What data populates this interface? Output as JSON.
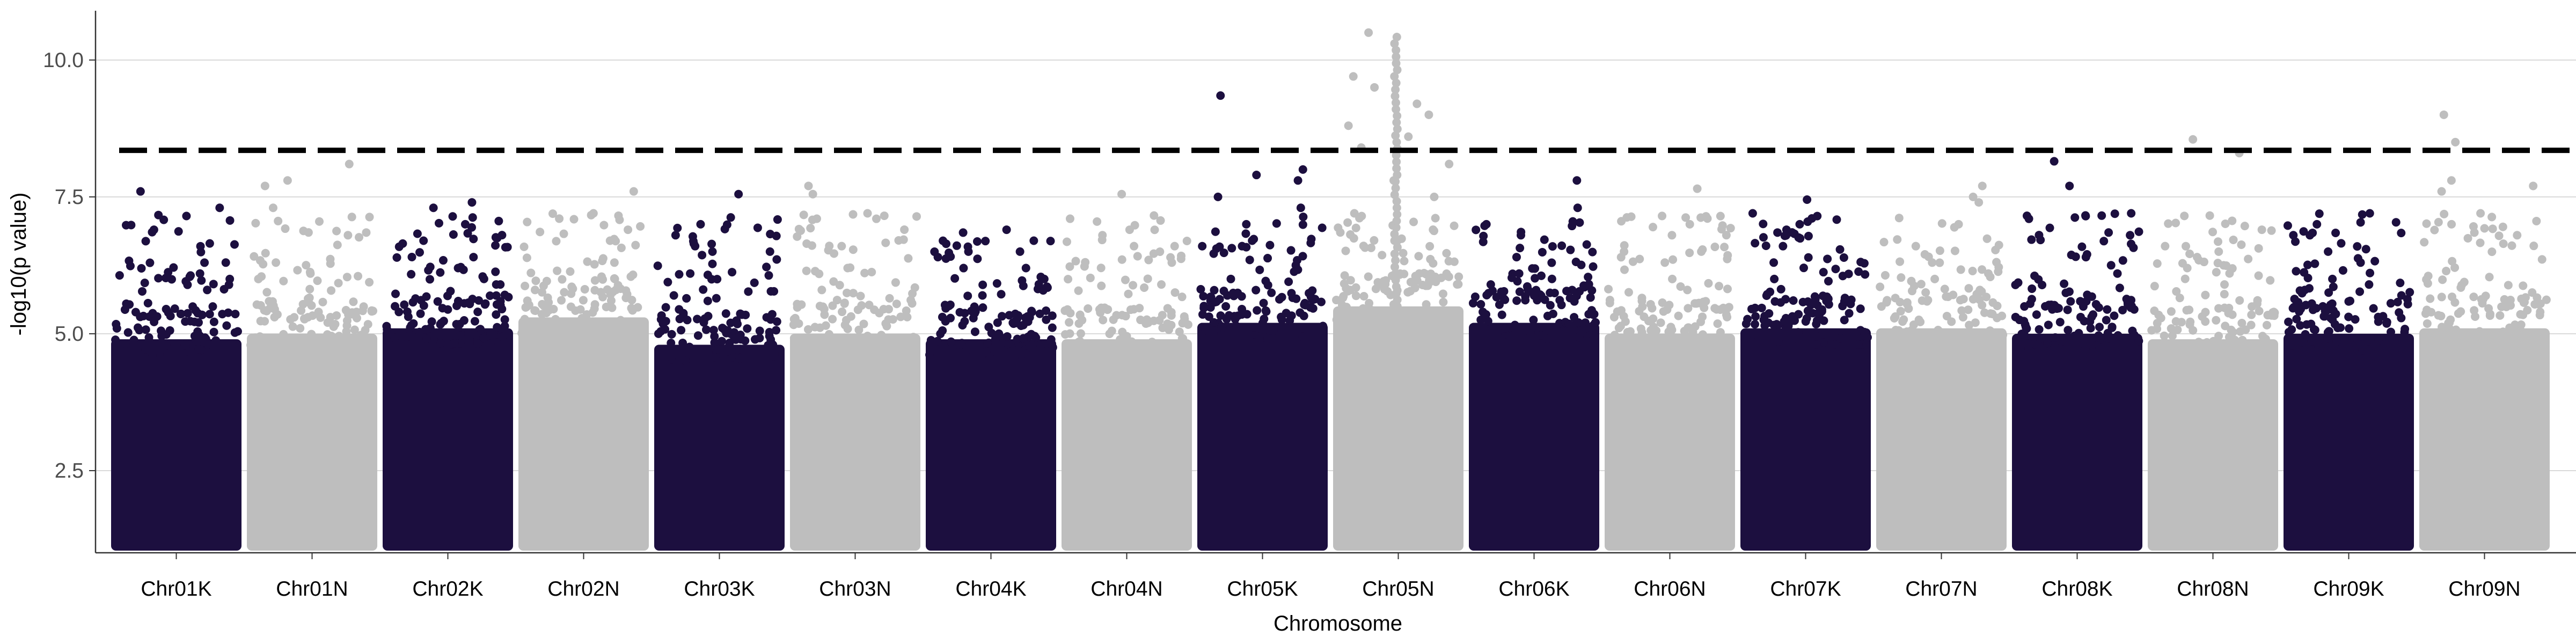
{
  "chart_data": {
    "type": "scatter",
    "subtype": "manhattan",
    "title": "",
    "xlabel": "Chromosome",
    "ylabel": "-log10(p value)",
    "ylim": [
      1.0,
      10.9
    ],
    "yticks": [
      2.5,
      5.0,
      7.5,
      10.0
    ],
    "ytick_labels": [
      "2.5",
      "5.0",
      "7.5",
      "10.0"
    ],
    "grid": "horizontal major lines only",
    "legend": "none",
    "threshold": {
      "value": 8.35,
      "style": "dashed",
      "color": "#000000"
    },
    "colors": {
      "odd": "#1c0f3f",
      "even": "#bebebe",
      "grid": "#d9d9d9",
      "axis": "#333333"
    },
    "categories": [
      "Chr01K",
      "Chr01N",
      "Chr02K",
      "Chr02N",
      "Chr03K",
      "Chr03N",
      "Chr04K",
      "Chr04N",
      "Chr05K",
      "Chr05N",
      "Chr06K",
      "Chr06N",
      "Chr07K",
      "Chr07N",
      "Chr08K",
      "Chr08N",
      "Chr09K",
      "Chr09N"
    ],
    "series": [
      {
        "chromosome": "Chr01K",
        "dense_top": 4.9,
        "peak": 7.6,
        "top_points": [
          7.6,
          7.3,
          6.9,
          6.3,
          6.1,
          6.0,
          5.8
        ]
      },
      {
        "chromosome": "Chr01N",
        "dense_top": 5.0,
        "peak": 8.1,
        "top_points": [
          8.1,
          7.8,
          7.7,
          7.3,
          6.8,
          6.3,
          6.0
        ]
      },
      {
        "chromosome": "Chr02K",
        "dense_top": 5.1,
        "peak": 7.4,
        "top_points": [
          7.4,
          7.3,
          7.0,
          6.7,
          6.4,
          6.2,
          5.9
        ]
      },
      {
        "chromosome": "Chr02N",
        "dense_top": 5.3,
        "peak": 7.6,
        "top_points": [
          7.6,
          7.2,
          6.9,
          6.7,
          6.3,
          6.0,
          5.8
        ]
      },
      {
        "chromosome": "Chr03K",
        "dense_top": 4.8,
        "peak": 7.55,
        "top_points": [
          7.55,
          7.0,
          6.8,
          6.6,
          6.5,
          6.1,
          5.7
        ]
      },
      {
        "chromosome": "Chr03N",
        "dense_top": 5.0,
        "peak": 7.7,
        "top_points": [
          7.7,
          7.55,
          7.2,
          7.1,
          6.6,
          6.2,
          5.8
        ]
      },
      {
        "chromosome": "Chr04K",
        "dense_top": 4.9,
        "peak": 6.9,
        "top_points": [
          6.9,
          6.7,
          6.5,
          6.4,
          6.2,
          6.0,
          5.7
        ]
      },
      {
        "chromosome": "Chr04N",
        "dense_top": 4.9,
        "peak": 7.55,
        "top_points": [
          7.55,
          6.9,
          6.8,
          6.6,
          6.6,
          6.3,
          5.9
        ]
      },
      {
        "chromosome": "Chr05K",
        "dense_top": 5.2,
        "peak": 9.35,
        "top_points": [
          9.35,
          8.0,
          7.9,
          7.8,
          7.5,
          7.3,
          7.0,
          6.6
        ]
      },
      {
        "chromosome": "Chr05N",
        "dense_top": 5.5,
        "peak": 10.5,
        "top_points": [
          10.5,
          9.7,
          9.5,
          9.2,
          9.0,
          8.8,
          8.6,
          8.4,
          8.1,
          7.8,
          7.5,
          7.2
        ]
      },
      {
        "chromosome": "Chr06K",
        "dense_top": 5.2,
        "peak": 7.8,
        "top_points": [
          7.8,
          7.3,
          7.0,
          6.8,
          6.4,
          6.1,
          5.9
        ]
      },
      {
        "chromosome": "Chr06N",
        "dense_top": 5.0,
        "peak": 7.65,
        "top_points": [
          7.65,
          7.0,
          6.8,
          6.5,
          6.3,
          6.0,
          5.8
        ]
      },
      {
        "chromosome": "Chr07K",
        "dense_top": 5.1,
        "peak": 7.45,
        "top_points": [
          7.45,
          7.2,
          7.0,
          6.9,
          6.6,
          6.3,
          6.0
        ]
      },
      {
        "chromosome": "Chr07N",
        "dense_top": 5.1,
        "peak": 7.7,
        "top_points": [
          7.7,
          7.5,
          7.4,
          7.0,
          6.6,
          6.3,
          6.0
        ]
      },
      {
        "chromosome": "Chr08K",
        "dense_top": 5.0,
        "peak": 8.15,
        "top_points": [
          8.15,
          7.7,
          7.2,
          7.1,
          6.8,
          6.4,
          6.1
        ]
      },
      {
        "chromosome": "Chr08N",
        "dense_top": 4.9,
        "peak": 8.55,
        "top_points": [
          8.55,
          8.3,
          6.9,
          6.6,
          6.5,
          6.2,
          5.9
        ]
      },
      {
        "chromosome": "Chr09K",
        "dense_top": 5.0,
        "peak": 7.2,
        "top_points": [
          7.2,
          7.0,
          6.8,
          6.5,
          6.3,
          6.0,
          5.7
        ]
      },
      {
        "chromosome": "Chr09N",
        "dense_top": 5.1,
        "peak": 9.0,
        "top_points": [
          9.0,
          8.5,
          7.8,
          7.7,
          7.6,
          7.2,
          7.0,
          6.8
        ]
      }
    ]
  }
}
